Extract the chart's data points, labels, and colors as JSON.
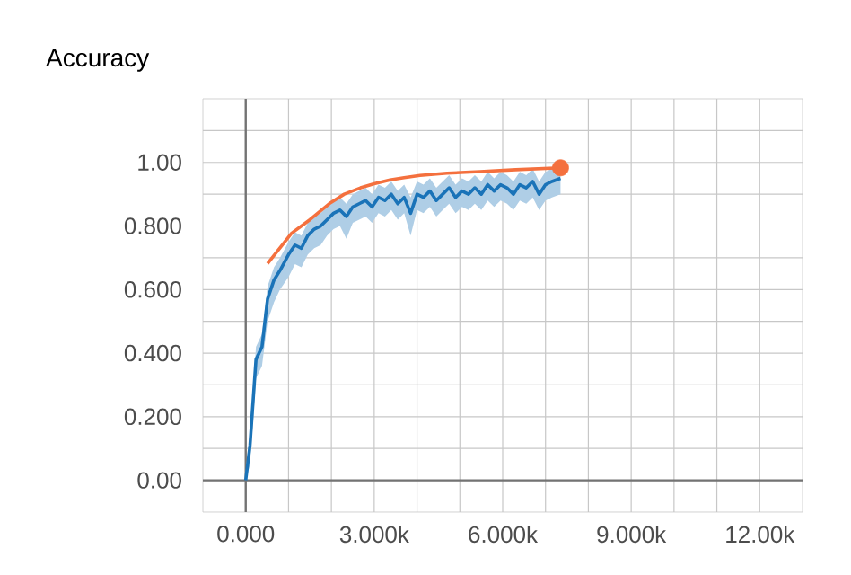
{
  "chart_data": {
    "type": "line",
    "title": "Accuracy",
    "xlim": [
      -1000,
      13000
    ],
    "ylim": [
      -0.1,
      1.2
    ],
    "xticks": [
      {
        "value": 0,
        "label": "0.000"
      },
      {
        "value": 1000,
        "label": null
      },
      {
        "value": 2000,
        "label": null
      },
      {
        "value": 3000,
        "label": "3.000k"
      },
      {
        "value": 4000,
        "label": null
      },
      {
        "value": 5000,
        "label": null
      },
      {
        "value": 6000,
        "label": "6.000k"
      },
      {
        "value": 7000,
        "label": null
      },
      {
        "value": 8000,
        "label": null
      },
      {
        "value": 9000,
        "label": "9.000k"
      },
      {
        "value": 10000,
        "label": null
      },
      {
        "value": 11000,
        "label": null
      },
      {
        "value": 12000,
        "label": "12.00k"
      }
    ],
    "yticks": [
      {
        "value": 0,
        "label": "0.00"
      },
      {
        "value": 0.1,
        "label": null
      },
      {
        "value": 0.2,
        "label": "0.200"
      },
      {
        "value": 0.3,
        "label": null
      },
      {
        "value": 0.4,
        "label": "0.400"
      },
      {
        "value": 0.5,
        "label": null
      },
      {
        "value": 0.6,
        "label": "0.600"
      },
      {
        "value": 0.7,
        "label": null
      },
      {
        "value": 0.8,
        "label": "0.800"
      },
      {
        "value": 0.9,
        "label": null
      },
      {
        "value": 1.0,
        "label": "1.00"
      },
      {
        "value": 1.1,
        "label": null
      }
    ],
    "grid": true,
    "line_style": "solid",
    "series": [
      {
        "color": "#1a73b8",
        "x": [
          0,
          100,
          240,
          380,
          510,
          660,
          800,
          1000,
          1150,
          1300,
          1450,
          1600,
          1750,
          1900,
          2050,
          2200,
          2350,
          2500,
          2650,
          2800,
          2950,
          3100,
          3250,
          3400,
          3550,
          3700,
          3850,
          4000,
          4150,
          4300,
          4450,
          4600,
          4750,
          4900,
          5050,
          5200,
          5350,
          5500,
          5650,
          5800,
          5950,
          6100,
          6250,
          6400,
          6550,
          6700,
          6850,
          7000,
          7150,
          7350
        ],
        "values": [
          0,
          0.11,
          0.38,
          0.42,
          0.57,
          0.63,
          0.66,
          0.71,
          0.74,
          0.73,
          0.77,
          0.79,
          0.8,
          0.82,
          0.84,
          0.85,
          0.83,
          0.86,
          0.87,
          0.88,
          0.86,
          0.89,
          0.88,
          0.9,
          0.87,
          0.89,
          0.84,
          0.9,
          0.89,
          0.91,
          0.88,
          0.9,
          0.92,
          0.89,
          0.91,
          0.9,
          0.92,
          0.9,
          0.93,
          0.91,
          0.93,
          0.92,
          0.9,
          0.93,
          0.92,
          0.94,
          0.9,
          0.93,
          0.94,
          0.95
        ],
        "lower": [
          0,
          0.05,
          0.32,
          0.36,
          0.5,
          0.56,
          0.6,
          0.64,
          0.68,
          0.67,
          0.71,
          0.73,
          0.74,
          0.77,
          0.79,
          0.8,
          0.76,
          0.81,
          0.82,
          0.83,
          0.81,
          0.84,
          0.83,
          0.85,
          0.82,
          0.84,
          0.77,
          0.85,
          0.84,
          0.86,
          0.83,
          0.85,
          0.87,
          0.84,
          0.86,
          0.85,
          0.87,
          0.85,
          0.88,
          0.86,
          0.88,
          0.87,
          0.85,
          0.88,
          0.87,
          0.89,
          0.85,
          0.88,
          0.89,
          0.9
        ],
        "upper": [
          0.03,
          0.15,
          0.42,
          0.46,
          0.61,
          0.67,
          0.7,
          0.75,
          0.78,
          0.77,
          0.81,
          0.83,
          0.84,
          0.86,
          0.88,
          0.89,
          0.87,
          0.9,
          0.91,
          0.92,
          0.9,
          0.93,
          0.92,
          0.94,
          0.91,
          0.93,
          0.89,
          0.94,
          0.93,
          0.95,
          0.92,
          0.94,
          0.96,
          0.93,
          0.95,
          0.94,
          0.96,
          0.94,
          0.97,
          0.95,
          0.97,
          0.96,
          0.94,
          0.97,
          0.96,
          0.98,
          0.94,
          0.97,
          0.98,
          0.98
        ]
      },
      {
        "color": "#f4703e",
        "x": [
          510,
          1070,
          1500,
          1980,
          2300,
          2680,
          3000,
          3370,
          3700,
          4070,
          4700,
          5470,
          6300,
          7350
        ],
        "values": [
          0.682,
          0.777,
          0.82,
          0.873,
          0.9,
          0.92,
          0.933,
          0.945,
          0.952,
          0.959,
          0.966,
          0.971,
          0.977,
          0.983
        ]
      },
      {
        "type": "scatter",
        "color": "#f4703e",
        "x": [
          7350
        ],
        "values": [
          0.983
        ]
      }
    ]
  }
}
